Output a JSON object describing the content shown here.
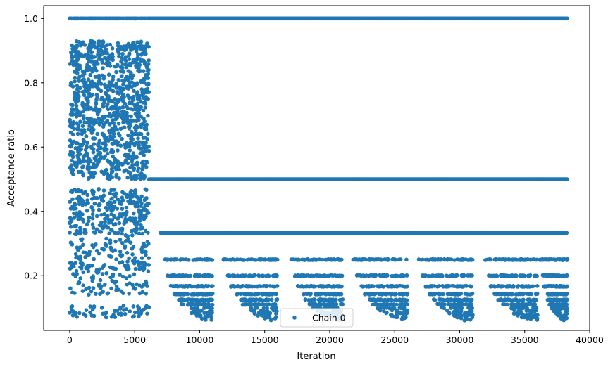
{
  "chart_data": {
    "type": "scatter",
    "title": "",
    "xlabel": "Iteration",
    "ylabel": "Acceptance ratio",
    "xlim": [
      -2000,
      40000
    ],
    "ylim": [
      0.03,
      1.04
    ],
    "xticks": [
      0,
      5000,
      10000,
      15000,
      20000,
      25000,
      30000,
      35000,
      40000
    ],
    "yticks": [
      0.2,
      0.4,
      0.6,
      0.8,
      1.0
    ],
    "grid": false,
    "legend": "lower-center",
    "series": [
      {
        "name": "Chain 0",
        "color": "#1f77b4",
        "marker": "circle",
        "description_segments": [
          {
            "x": [
              0,
              6100
            ],
            "levels": "dense band of values between 0.5 and 0.93, discrete values between 0.07 and 0.47, frequent 1.0"
          },
          {
            "x": [
              6100,
              38300
            ],
            "levels": [
              1.0,
              0.5,
              0.333,
              0.25,
              0.2,
              0.167,
              0.143,
              0.125,
              0.111,
              0.1
            ]
          }
        ]
      }
    ]
  }
}
